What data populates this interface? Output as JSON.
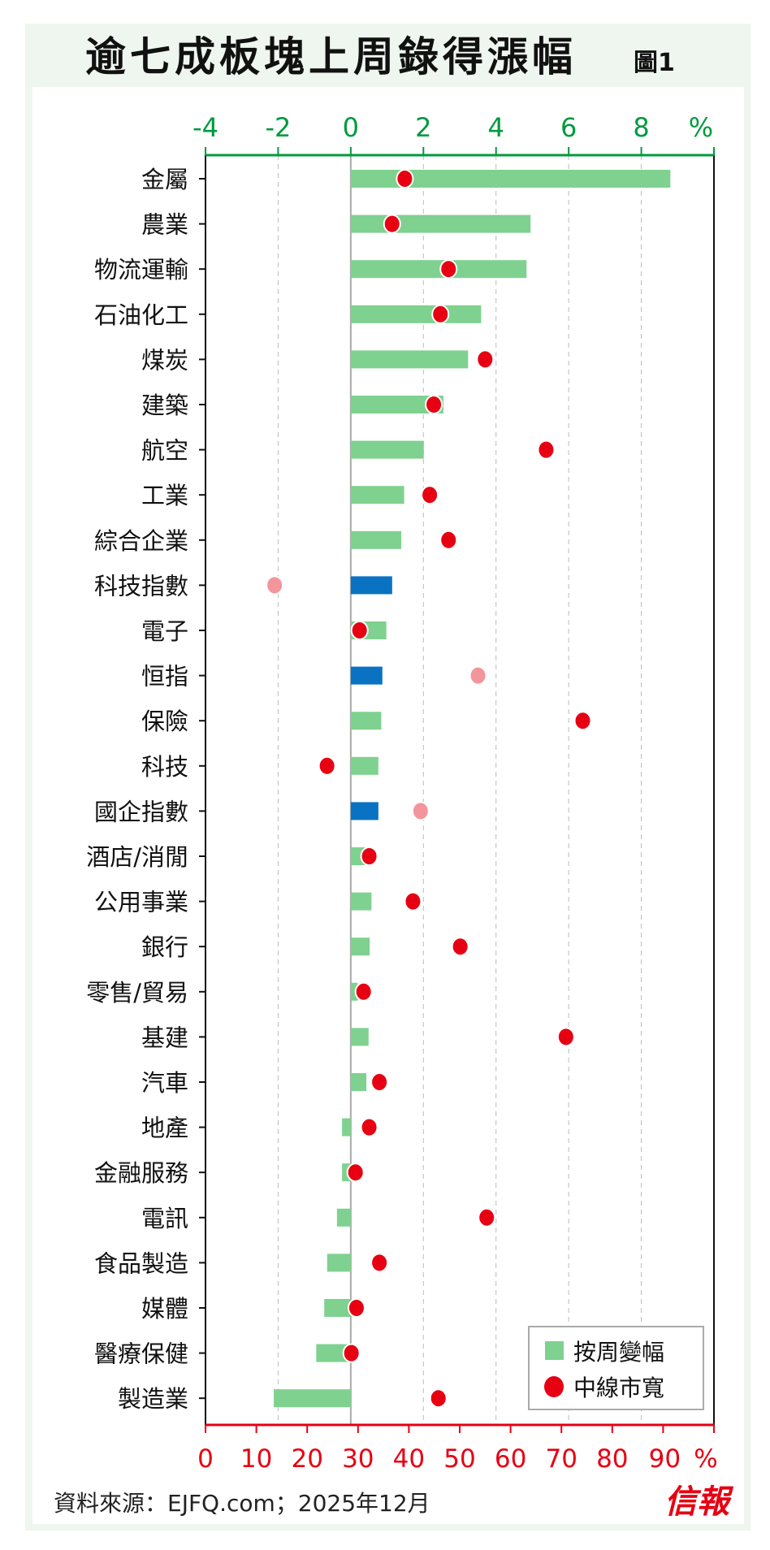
{
  "chart_data": {
    "type": "bar",
    "title": "逾七成板塊上周錄得漲幅",
    "figure_label": "圖1",
    "categories": [
      "金屬",
      "農業",
      "物流運輸",
      "石油化工",
      "煤炭",
      "建築",
      "航空",
      "工業",
      "綜合企業",
      "科技指數",
      "電子",
      "恒指",
      "保險",
      "科技",
      "國企指數",
      "酒店/消閒",
      "公用事業",
      "銀行",
      "零售/貿易",
      "基建",
      "汽車",
      "地產",
      "金融服務",
      "電訊",
      "食品製造",
      "媒體",
      "醫療保健",
      "製造業"
    ],
    "is_index": [
      false,
      false,
      false,
      false,
      false,
      false,
      false,
      false,
      false,
      true,
      false,
      true,
      false,
      false,
      true,
      false,
      false,
      false,
      false,
      false,
      false,
      false,
      false,
      false,
      false,
      false,
      false,
      false
    ],
    "series": [
      {
        "name": "按周變幅",
        "axis": "top",
        "unit": "%",
        "values": [
          8.8,
          4.95,
          4.84,
          3.59,
          3.23,
          2.55,
          2.01,
          1.47,
          1.39,
          1.14,
          0.98,
          0.87,
          0.84,
          0.76,
          0.76,
          0.41,
          0.57,
          0.52,
          0.19,
          0.49,
          0.43,
          -0.24,
          -0.24,
          -0.38,
          -0.65,
          -0.73,
          -0.95,
          -2.12
        ]
      },
      {
        "name": "中線市寬",
        "axis": "bottom",
        "unit": "%",
        "values": [
          39.2,
          36.7,
          47.8,
          46.2,
          55.0,
          44.9,
          67.0,
          44.1,
          47.8,
          13.6,
          30.3,
          53.6,
          74.2,
          23.9,
          42.3,
          32.2,
          40.8,
          50.1,
          31.1,
          70.9,
          34.2,
          32.2,
          29.5,
          55.3,
          34.2,
          29.7,
          28.7,
          45.8
        ]
      }
    ],
    "top_axis": {
      "range": [
        -4,
        10
      ],
      "ticks": [
        "-4",
        "-2",
        "0",
        "2",
        "4",
        "6",
        "8"
      ],
      "unit_label": "%"
    },
    "bottom_axis": {
      "range": [
        0,
        100
      ],
      "ticks": [
        "0",
        "10",
        "20",
        "30",
        "40",
        "50",
        "60",
        "70",
        "80",
        "90"
      ],
      "unit_label": "%"
    },
    "legend": {
      "placement": "bottom-right",
      "items": [
        "按周變幅",
        "中線市寬"
      ]
    },
    "grid": true
  },
  "footer": {
    "source": "資料來源：EJFQ.com；2025年12月",
    "brand": "信報"
  },
  "colors": {
    "bar": "#7fd18f",
    "index_bar": "#0a72c2",
    "dot": "#e60012",
    "index_dot": "#f3969c",
    "top_axis": "#009a3e",
    "bottom_axis": "#e60012",
    "frame": "#eef6ef"
  }
}
